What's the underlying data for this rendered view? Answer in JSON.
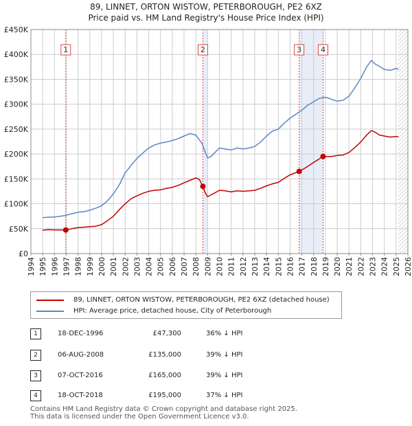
{
  "colors": {
    "property": "#c00000",
    "hpi": "#5b86c5",
    "band": "#e8eef8",
    "vline": "#dd4444",
    "grid": "#cccccc"
  },
  "chart_data": {
    "type": "line",
    "title": "89, LINNET, ORTON WISTOW, PETERBOROUGH, PE2 6XZ",
    "subtitle": "Price paid vs. HM Land Registry's House Price Index (HPI)",
    "xlim": [
      1994,
      2026
    ],
    "ylim": [
      0,
      450000
    ],
    "x_ticks": [
      "1994",
      "1995",
      "1996",
      "1997",
      "1998",
      "1999",
      "2000",
      "2001",
      "2002",
      "2003",
      "2004",
      "2005",
      "2006",
      "2007",
      "2008",
      "2009",
      "2010",
      "2011",
      "2012",
      "2013",
      "2014",
      "2015",
      "2016",
      "2017",
      "2018",
      "2019",
      "2020",
      "2021",
      "2022",
      "2023",
      "2024",
      "2025",
      "2026"
    ],
    "y_ticks": [
      {
        "label": "£0",
        "value": 0
      },
      {
        "label": "£50K",
        "value": 50000
      },
      {
        "label": "£100K",
        "value": 100000
      },
      {
        "label": "£150K",
        "value": 150000
      },
      {
        "label": "£200K",
        "value": 200000
      },
      {
        "label": "£250K",
        "value": 250000
      },
      {
        "label": "£300K",
        "value": 300000
      },
      {
        "label": "£350K",
        "value": 350000
      },
      {
        "label": "£400K",
        "value": 400000
      },
      {
        "label": "£450K",
        "value": 450000
      }
    ],
    "shaded_ranges": [
      [
        1996.96,
        1997.0
      ],
      [
        2008.6,
        2009.0
      ],
      [
        2016.77,
        2018.8
      ]
    ],
    "hatched_range": [
      2025.2,
      2026
    ],
    "series": [
      {
        "name": "89, LINNET, ORTON WISTOW, PETERBOROUGH, PE2 6XZ (detached house)",
        "x": [
          1995.0,
          1995.5,
          1996.0,
          1996.5,
          1996.96,
          1997.5,
          1998.0,
          1998.5,
          1999.0,
          1999.5,
          2000.0,
          2000.5,
          2001.0,
          2001.5,
          2002.0,
          2002.5,
          2003.0,
          2003.5,
          2004.0,
          2004.5,
          2005.0,
          2005.5,
          2006.0,
          2006.5,
          2007.0,
          2007.5,
          2008.0,
          2008.3,
          2008.6,
          2008.8,
          2009.0,
          2009.3,
          2009.7,
          2010.0,
          2010.5,
          2011.0,
          2011.5,
          2012.0,
          2012.5,
          2013.0,
          2013.5,
          2014.0,
          2014.5,
          2015.0,
          2015.5,
          2016.0,
          2016.77,
          2017.3,
          2018.0,
          2018.8,
          2019.5,
          2020.0,
          2020.5,
          2021.0,
          2021.5,
          2022.0,
          2022.5,
          2022.9,
          2023.2,
          2023.6,
          2024.0,
          2024.5,
          2025.0,
          2025.2
        ],
        "values": [
          47000,
          48000,
          47500,
          47500,
          47300,
          50000,
          52000,
          53000,
          54000,
          55000,
          58000,
          66000,
          75000,
          88000,
          100000,
          110000,
          116000,
          121000,
          125000,
          127000,
          128000,
          131000,
          133000,
          137000,
          142000,
          147000,
          152000,
          149000,
          135000,
          122000,
          114000,
          118000,
          123000,
          127000,
          126000,
          124000,
          126000,
          125000,
          126000,
          127000,
          131000,
          136000,
          140000,
          143000,
          151000,
          158000,
          165000,
          172000,
          183000,
          195000,
          195000,
          197000,
          198000,
          203000,
          213000,
          224000,
          238000,
          247000,
          244000,
          238000,
          236000,
          234000,
          235000,
          235000
        ]
      },
      {
        "name": "HPI: Average price, detached house, City of Peterborough",
        "x": [
          1995.0,
          1995.5,
          1996.0,
          1996.5,
          1997.0,
          1997.5,
          1998.0,
          1998.5,
          1999.0,
          1999.5,
          2000.0,
          2000.5,
          2001.0,
          2001.5,
          2002.0,
          2002.5,
          2003.0,
          2003.5,
          2004.0,
          2004.5,
          2005.0,
          2005.5,
          2006.0,
          2006.5,
          2007.0,
          2007.5,
          2008.0,
          2008.5,
          2009.0,
          2009.3,
          2009.7,
          2010.0,
          2010.5,
          2011.0,
          2011.5,
          2012.0,
          2012.5,
          2013.0,
          2013.5,
          2014.0,
          2014.5,
          2015.0,
          2015.5,
          2016.0,
          2016.5,
          2017.0,
          2017.5,
          2018.0,
          2018.5,
          2019.0,
          2019.5,
          2020.0,
          2020.5,
          2021.0,
          2021.5,
          2022.0,
          2022.5,
          2022.9,
          2023.2,
          2023.6,
          2024.0,
          2024.5,
          2025.0,
          2025.2
        ],
        "values": [
          72000,
          73000,
          73500,
          75000,
          77000,
          80000,
          83000,
          84000,
          87000,
          91000,
          96000,
          106000,
          120000,
          138000,
          162000,
          177000,
          191000,
          202000,
          212000,
          218000,
          222000,
          224000,
          227000,
          231000,
          236000,
          241000,
          238000,
          222000,
          192000,
          195000,
          205000,
          212000,
          210000,
          208000,
          212000,
          210000,
          212000,
          215000,
          224000,
          236000,
          246000,
          250000,
          262000,
          272000,
          280000,
          288000,
          298000,
          305000,
          312000,
          314000,
          310000,
          306000,
          308000,
          316000,
          333000,
          352000,
          375000,
          388000,
          381000,
          376000,
          370000,
          368000,
          372000,
          370000
        ]
      }
    ],
    "sales": [
      {
        "label": "1",
        "x": 1996.96,
        "value": 47300
      },
      {
        "label": "2",
        "x": 2008.6,
        "value": 135000
      },
      {
        "label": "3",
        "x": 2016.77,
        "value": 165000
      },
      {
        "label": "4",
        "x": 2018.8,
        "value": 195000
      }
    ]
  },
  "legend": {
    "property": "89, LINNET, ORTON WISTOW, PETERBOROUGH, PE2 6XZ (detached house)",
    "hpi": "HPI: Average price, detached house, City of Peterborough"
  },
  "transactions": [
    {
      "id": "1",
      "date": "18-DEC-1996",
      "price": "£47,300",
      "hpi": "36% ↓ HPI"
    },
    {
      "id": "2",
      "date": "06-AUG-2008",
      "price": "£135,000",
      "hpi": "39% ↓ HPI"
    },
    {
      "id": "3",
      "date": "07-OCT-2016",
      "price": "£165,000",
      "hpi": "39% ↓ HPI"
    },
    {
      "id": "4",
      "date": "18-OCT-2018",
      "price": "£195,000",
      "hpi": "37% ↓ HPI"
    }
  ],
  "footer": {
    "line1": "Contains HM Land Registry data © Crown copyright and database right 2025.",
    "line2": "This data is licensed under the Open Government Licence v3.0."
  }
}
